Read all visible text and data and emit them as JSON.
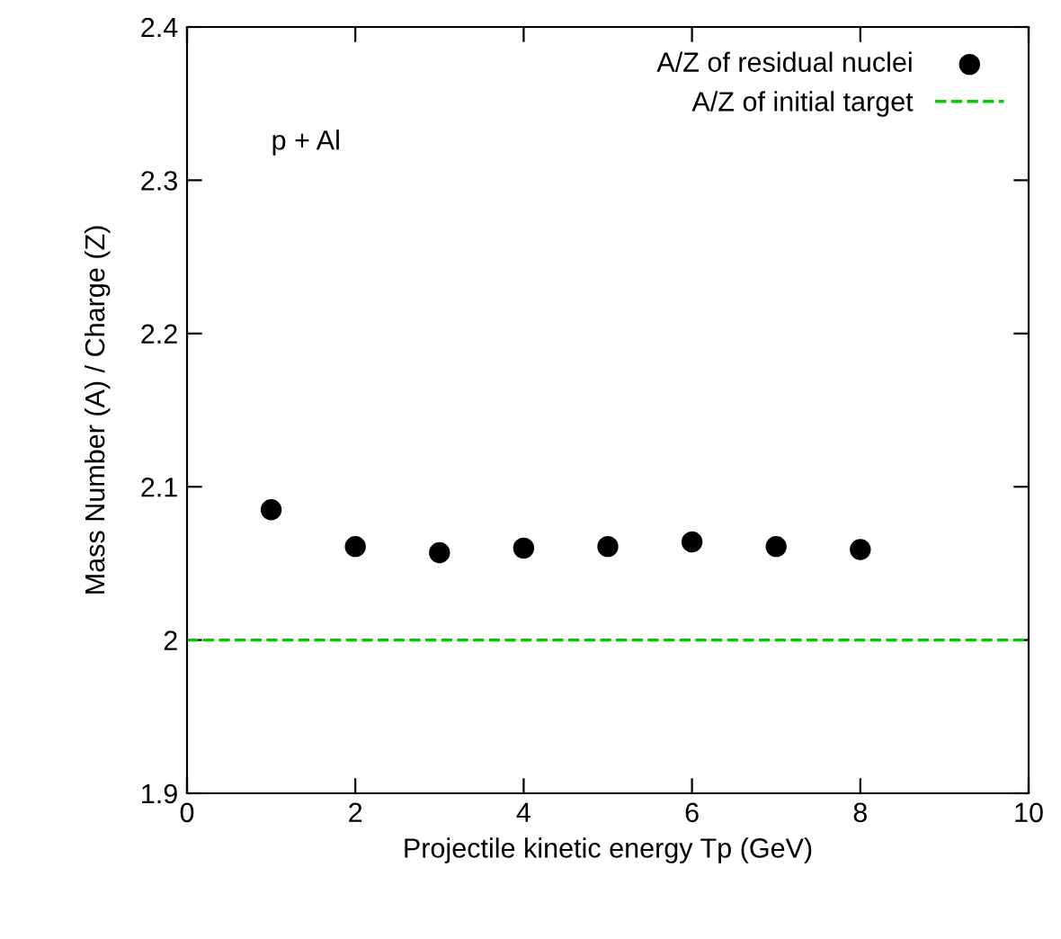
{
  "chart_data": {
    "type": "scatter",
    "xlabel": "Projectile kinetic energy Tp (GeV)",
    "ylabel": "Mass Number (A) / Charge (Z)",
    "x": [
      1,
      2,
      3,
      4,
      5,
      6,
      7,
      8
    ],
    "series": [
      {
        "name": "A/Z of residual nuclei",
        "color": "#000000",
        "values": [
          2.085,
          2.061,
          2.057,
          2.06,
          2.061,
          2.064,
          2.061,
          2.059
        ]
      }
    ],
    "ref_lines": [
      {
        "axis": "y",
        "value": 2,
        "label": "A/Z of initial target",
        "color": "#00cc00",
        "line_style": "dashed"
      }
    ],
    "annotations": [
      "p + Al"
    ],
    "xlim": [
      0,
      10
    ],
    "ylim": [
      1.9,
      2.4
    ],
    "xticks": [
      0,
      2,
      4,
      6,
      8,
      10
    ],
    "yticks": [
      1.9,
      2,
      2.1,
      2.2,
      2.3,
      2.4
    ],
    "marker": "circle",
    "grid": false,
    "legend": "top right"
  }
}
